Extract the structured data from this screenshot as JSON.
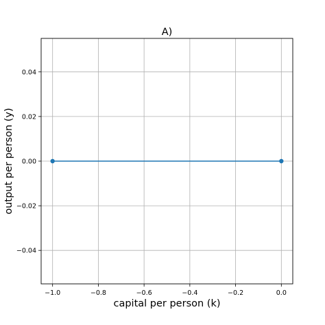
{
  "chart_data": {
    "type": "line",
    "title": "A)",
    "xlabel": "capital per person (k)",
    "ylabel": "output per person (y)",
    "xlim": [
      -1.05,
      0.05
    ],
    "ylim": [
      -0.055,
      0.055
    ],
    "xticks": [
      -1.0,
      -0.8,
      -0.6,
      -0.4,
      -0.2,
      0.0
    ],
    "xtick_labels": [
      "−1.0",
      "−0.8",
      "−0.6",
      "−0.4",
      "−0.2",
      "0.0"
    ],
    "yticks": [
      0.04,
      0.02,
      0.0,
      -0.02,
      -0.04
    ],
    "ytick_labels": [
      "0.04",
      "0.02",
      "0.00",
      "−0.02",
      "−0.04"
    ],
    "grid": true,
    "series": [
      {
        "x": [
          -1.0,
          0.0
        ],
        "y": [
          0.0,
          0.0
        ],
        "color": "#1f77b4",
        "marker": "circle"
      }
    ]
  }
}
